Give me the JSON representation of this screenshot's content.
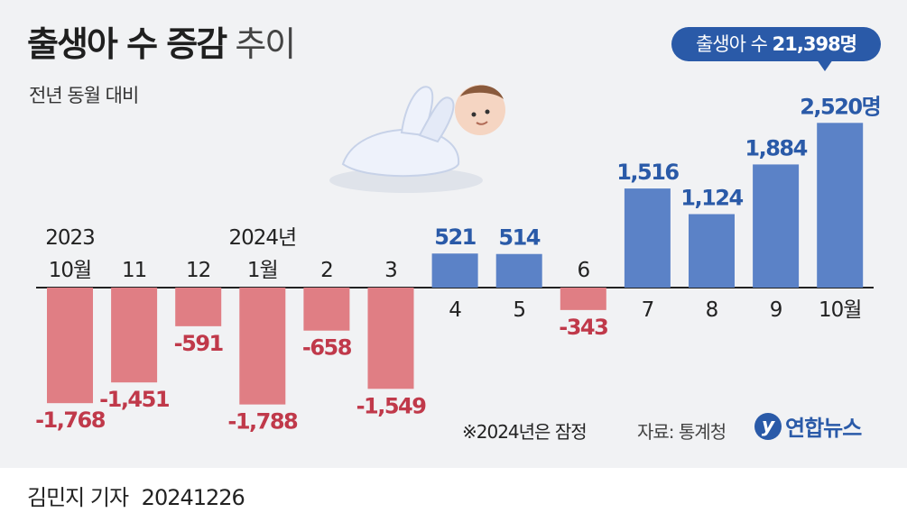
{
  "header": {
    "title_bold": "출생아 수 증감",
    "title_light": "추이",
    "subtitle": "전년 동월 대비"
  },
  "callout": {
    "label": "출생아 수",
    "value": "21,398명"
  },
  "chart_data": {
    "type": "bar",
    "title": "출생아 수 증감 추이",
    "subtitle": "전년 동월 대비",
    "xlabel": "",
    "ylabel": "",
    "categories": [
      "2023 10월",
      "11",
      "12",
      "2024년 1월",
      "2",
      "3",
      "4",
      "5",
      "6",
      "7",
      "8",
      "9",
      "10월"
    ],
    "tick_labels": [
      [
        "2023",
        "10월"
      ],
      [
        "11"
      ],
      [
        "12"
      ],
      [
        "2024년",
        "1월"
      ],
      [
        "2"
      ],
      [
        "3"
      ],
      [
        "4"
      ],
      [
        "5"
      ],
      [
        "6"
      ],
      [
        "7"
      ],
      [
        "8"
      ],
      [
        "9"
      ],
      [
        "10월"
      ]
    ],
    "values": [
      -1768,
      -1451,
      -591,
      -1788,
      -658,
      -1549,
      521,
      514,
      -343,
      1516,
      1124,
      1884,
      2520
    ],
    "value_labels": [
      "-1,768",
      "-1,451",
      "-591",
      "-1,788",
      "-658",
      "-1,549",
      "521",
      "514",
      "-343",
      "1,516",
      "1,124",
      "1,884",
      "2,520명"
    ],
    "ylim": [
      -2000,
      2700
    ],
    "grid": false,
    "legend": "none",
    "colors": {
      "positive": "#5b82c7",
      "negative": "#e07e84",
      "positive_label": "#2a5aa8",
      "negative_label": "#c0394a",
      "axis": "#222222"
    }
  },
  "footer": {
    "note": "※2024년은 잠정",
    "source": "자료: 통계청",
    "logo_mark": "y",
    "logo_name": "연합뉴스",
    "reporter": "김민지 기자",
    "date": "20241226"
  },
  "decoration": {
    "illustration": "baby-icon"
  }
}
